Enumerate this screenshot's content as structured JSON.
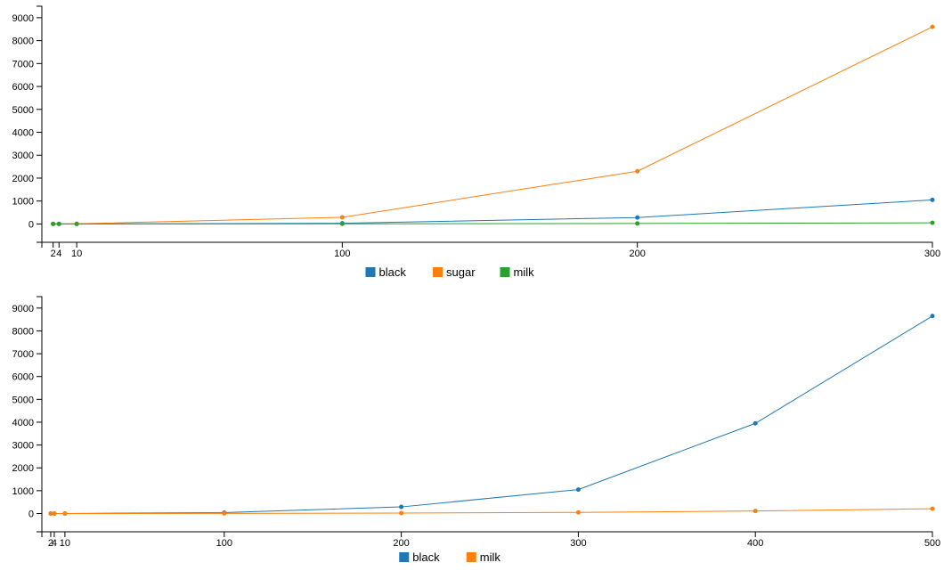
{
  "chart_data": [
    {
      "type": "line",
      "x": [
        2,
        4,
        10,
        100,
        200,
        300
      ],
      "xticks": [
        2,
        4,
        10,
        100,
        200,
        300
      ],
      "yticks": [
        0,
        1000,
        2000,
        3000,
        4000,
        5000,
        6000,
        7000,
        8000,
        9000
      ],
      "ylim": [
        -800,
        9500
      ],
      "xlim": [
        0,
        300
      ],
      "series": [
        {
          "name": "black",
          "color": "#1f77b4",
          "values": [
            0.01,
            0.06,
            1,
            30,
            280,
            1050
          ]
        },
        {
          "name": "sugar",
          "color": "#ff7f0e",
          "values": [
            0.05,
            0.4,
            5,
            290,
            2300,
            8600
          ]
        },
        {
          "name": "milk",
          "color": "#2ca02c",
          "values": [
            0,
            0,
            0.3,
            5,
            20,
            50
          ]
        }
      ],
      "legend_position": "bottom-center",
      "grid": false
    },
    {
      "type": "line",
      "x": [
        2,
        4,
        10,
        100,
        200,
        300,
        400,
        500
      ],
      "xticks": [
        2,
        4,
        10,
        100,
        200,
        300,
        400,
        500
      ],
      "yticks": [
        0,
        1000,
        2000,
        3000,
        4000,
        5000,
        6000,
        7000,
        8000,
        9000
      ],
      "ylim": [
        -800,
        9500
      ],
      "xlim": [
        0,
        500
      ],
      "series": [
        {
          "name": "black",
          "color": "#1f77b4",
          "values": [
            0,
            0,
            1,
            40,
            290,
            1050,
            3950,
            8650
          ]
        },
        {
          "name": "milk",
          "color": "#ff7f0e",
          "values": [
            0,
            0,
            0.2,
            5,
            20,
            50,
            110,
            210
          ]
        }
      ],
      "legend_position": "bottom-center",
      "grid": false
    }
  ]
}
